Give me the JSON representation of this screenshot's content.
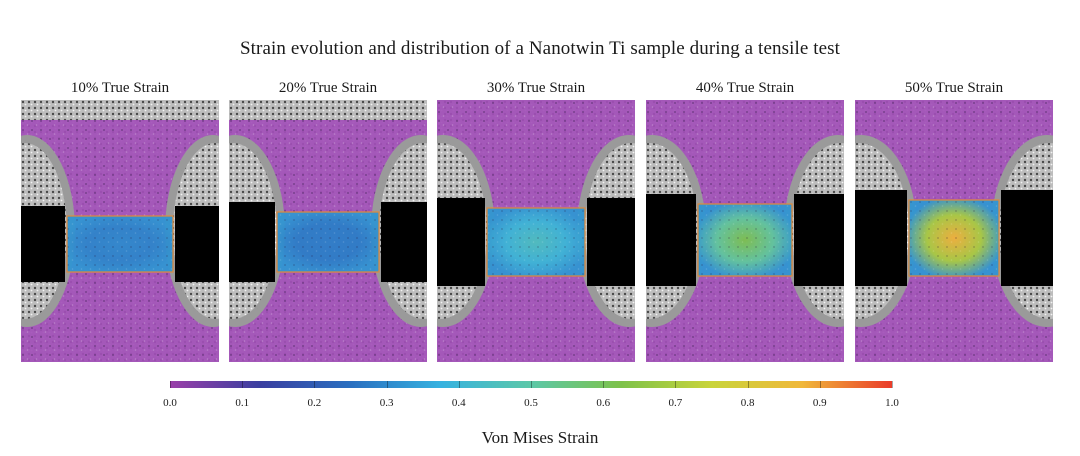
{
  "figure": {
    "title": "Strain evolution and distribution of a Nanotwin Ti sample during a tensile test"
  },
  "panels": [
    {
      "label": "10% True Strain",
      "gauge_peak_strain": 0.3
    },
    {
      "label": "20% True Strain",
      "gauge_peak_strain": 0.28
    },
    {
      "label": "30% True Strain",
      "gauge_peak_strain": 0.45
    },
    {
      "label": "40% True Strain",
      "gauge_peak_strain": 0.62
    },
    {
      "label": "50% True Strain",
      "gauge_peak_strain": 0.88
    }
  ],
  "colorbar": {
    "label": "Von Mises Strain",
    "ticks": [
      "0.0",
      "0.1",
      "0.2",
      "0.3",
      "0.4",
      "0.5",
      "0.6",
      "0.7",
      "0.8",
      "0.9",
      "1.0"
    ],
    "range": [
      0.0,
      1.0
    ],
    "colors": [
      "#9a3fa8",
      "#3a3fa0",
      "#2a6fc0",
      "#36b2e0",
      "#5cc8a8",
      "#7dc24a",
      "#c9d43a",
      "#f0b83a",
      "#ea3b2a"
    ]
  },
  "colors": {
    "background": "#ffffff",
    "specimen_overlay": "#a24fb8",
    "gauge_outline": "#e08a3a",
    "notch": "#000000"
  }
}
